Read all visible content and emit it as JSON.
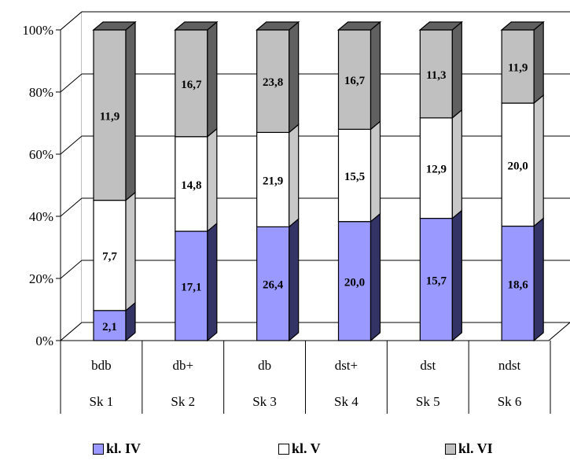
{
  "chart_data": {
    "type": "bar",
    "stacked": "percent",
    "three_d": true,
    "categories": [
      [
        "bdb",
        "Sk 1"
      ],
      [
        "db+",
        "Sk 2"
      ],
      [
        "db",
        "Sk 3"
      ],
      [
        "dst+",
        "Sk 4"
      ],
      [
        "dst",
        "Sk 5"
      ],
      [
        "ndst",
        "Sk 6"
      ]
    ],
    "series": [
      {
        "name": "kl. IV",
        "color": "#9999ff",
        "side_color": "#333366",
        "values": [
          2.1,
          17.1,
          26.4,
          20.0,
          15.7,
          18.6
        ],
        "labels": [
          "2,1",
          "17,1",
          "26,4",
          "20,0",
          "15,7",
          "18,6"
        ]
      },
      {
        "name": "kl. V",
        "color": "#ffffff",
        "side_color": "#c8c8c8",
        "values": [
          7.7,
          14.8,
          21.9,
          15.5,
          12.9,
          20.0
        ],
        "labels": [
          "7,7",
          "14,8",
          "21,9",
          "15,5",
          "12,9",
          "20,0"
        ]
      },
      {
        "name": "kl. VI",
        "color": "#c0c0c0",
        "side_color": "#606060",
        "values": [
          11.9,
          16.7,
          23.8,
          16.7,
          11.3,
          11.9
        ],
        "labels": [
          "11,9",
          "16,7",
          "23,8",
          "16,7",
          "11,3",
          "11,9"
        ]
      }
    ],
    "y_ticks": [
      "0%",
      "20%",
      "40%",
      "60%",
      "80%",
      "100%"
    ],
    "ylim": [
      0,
      100
    ],
    "grid": true,
    "legend_position": "bottom",
    "title": "",
    "xlabel": "",
    "ylabel": ""
  }
}
